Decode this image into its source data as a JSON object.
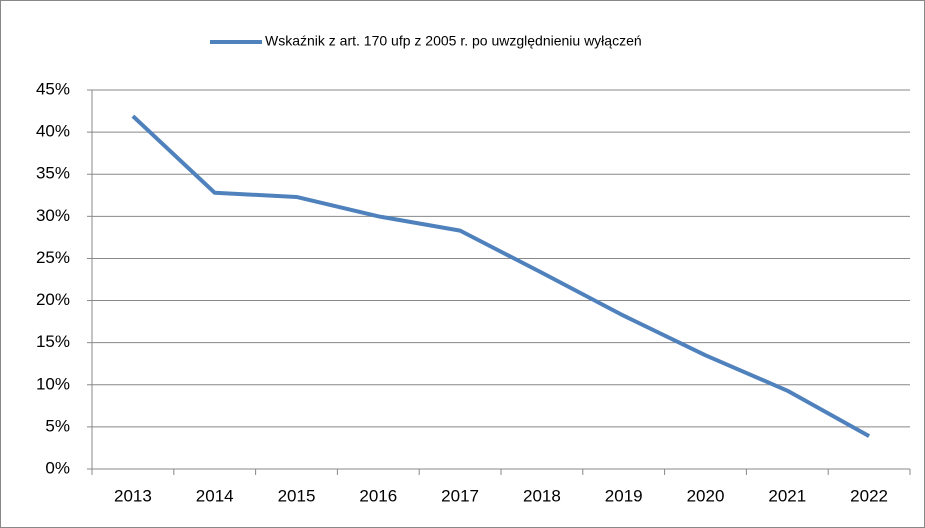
{
  "chart_data": {
    "type": "line",
    "categories": [
      "2013",
      "2014",
      "2015",
      "2016",
      "2017",
      "2018",
      "2019",
      "2020",
      "2021",
      "2022"
    ],
    "series": [
      {
        "name": "Wskaźnik z art. 170 ufp z 2005 r. po uwzględnieniu wyłączeń",
        "color": "#4f81bd",
        "values": [
          41.9,
          32.8,
          32.3,
          30.0,
          28.3,
          23.3,
          18.2,
          13.5,
          9.3,
          3.9
        ]
      }
    ],
    "ylim": [
      0,
      45
    ],
    "yticks": [
      {
        "value": 0,
        "label": "0%"
      },
      {
        "value": 5,
        "label": "5%"
      },
      {
        "value": 10,
        "label": "10%"
      },
      {
        "value": 15,
        "label": "15%"
      },
      {
        "value": 20,
        "label": "20%"
      },
      {
        "value": 25,
        "label": "25%"
      },
      {
        "value": 30,
        "label": "30%"
      },
      {
        "value": 35,
        "label": "35%"
      },
      {
        "value": 40,
        "label": "40%"
      },
      {
        "value": 45,
        "label": "45%"
      }
    ],
    "grid": true,
    "legend": "top"
  }
}
